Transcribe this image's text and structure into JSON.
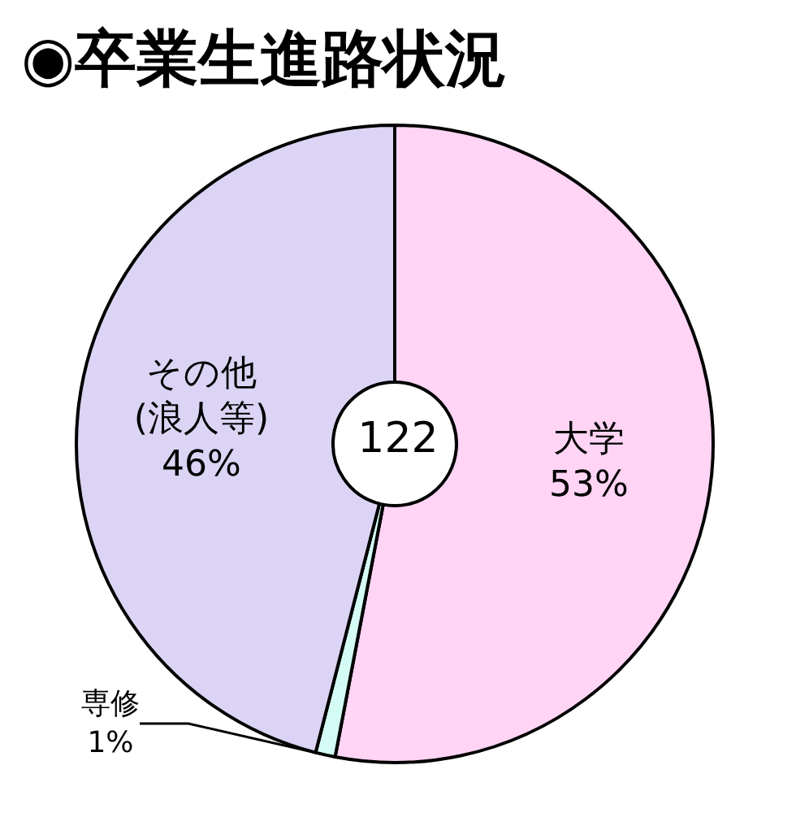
{
  "chart_data": {
    "type": "donut",
    "title": "◉卒業生進路状況",
    "categories": [
      "大学",
      "専修",
      "その他\n(浪人等)"
    ],
    "values": [
      53,
      1,
      46
    ],
    "colors": [
      "#ffd4f4",
      "#d4fcf4",
      "#dcd4f4"
    ],
    "value_labels": [
      "53%",
      "1%",
      "46%"
    ],
    "annotations": [
      "122"
    ],
    "legend": false
  }
}
